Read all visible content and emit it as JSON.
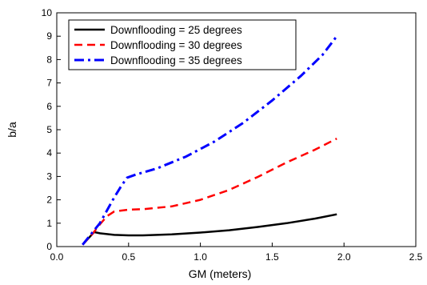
{
  "chart_data": {
    "type": "line",
    "xlabel": "GM (meters)",
    "ylabel": "b/a",
    "xlim": [
      0,
      2.5
    ],
    "ylim": [
      0,
      10
    ],
    "x_ticks": [
      0.0,
      0.5,
      1.0,
      1.5,
      2.0,
      2.5
    ],
    "x_tick_labels": [
      "0.0",
      "0.5",
      "1.0",
      "1.5",
      "2.0",
      "2.5"
    ],
    "y_ticks": [
      0,
      1,
      2,
      3,
      4,
      5,
      6,
      7,
      8,
      9,
      10
    ],
    "y_tick_labels": [
      "0",
      "1",
      "2",
      "3",
      "4",
      "5",
      "6",
      "7",
      "8",
      "9",
      "10"
    ],
    "grid": false,
    "legend_position": "top-left",
    "series": [
      {
        "name": "Downflooding = 25 degrees",
        "color": "#000000",
        "style": "solid",
        "points": [
          [
            0.18,
            0.08
          ],
          [
            0.22,
            0.35
          ],
          [
            0.26,
            0.62
          ],
          [
            0.3,
            0.57
          ],
          [
            0.4,
            0.5
          ],
          [
            0.5,
            0.48
          ],
          [
            0.6,
            0.48
          ],
          [
            0.8,
            0.52
          ],
          [
            1.0,
            0.6
          ],
          [
            1.2,
            0.7
          ],
          [
            1.4,
            0.84
          ],
          [
            1.6,
            1.0
          ],
          [
            1.8,
            1.2
          ],
          [
            1.95,
            1.38
          ]
        ]
      },
      {
        "name": "Downflooding = 30 degrees",
        "color": "#ff0000",
        "style": "dashed",
        "points": [
          [
            0.18,
            0.08
          ],
          [
            0.25,
            0.55
          ],
          [
            0.3,
            0.95
          ],
          [
            0.35,
            1.3
          ],
          [
            0.4,
            1.5
          ],
          [
            0.5,
            1.58
          ],
          [
            0.6,
            1.6
          ],
          [
            0.8,
            1.72
          ],
          [
            1.0,
            2.0
          ],
          [
            1.2,
            2.42
          ],
          [
            1.4,
            2.98
          ],
          [
            1.6,
            3.6
          ],
          [
            1.8,
            4.15
          ],
          [
            1.95,
            4.62
          ]
        ]
      },
      {
        "name": "Downflooding = 35 degrees",
        "color": "#0000ff",
        "style": "dashdot",
        "points": [
          [
            0.18,
            0.08
          ],
          [
            0.3,
            1.0
          ],
          [
            0.4,
            2.1
          ],
          [
            0.45,
            2.6
          ],
          [
            0.49,
            2.95
          ],
          [
            0.55,
            3.08
          ],
          [
            0.7,
            3.35
          ],
          [
            0.9,
            3.85
          ],
          [
            1.1,
            4.5
          ],
          [
            1.3,
            5.3
          ],
          [
            1.5,
            6.25
          ],
          [
            1.7,
            7.3
          ],
          [
            1.85,
            8.2
          ],
          [
            1.95,
            9.0
          ]
        ]
      }
    ]
  }
}
